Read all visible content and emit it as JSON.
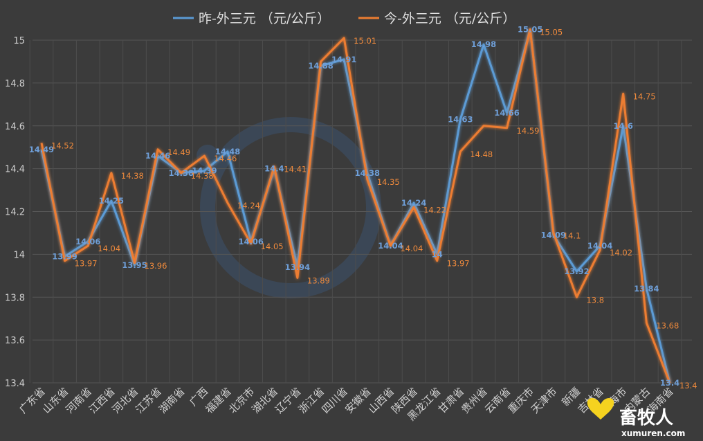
{
  "chart_data": {
    "type": "line",
    "legend_position": "top",
    "ylim": [
      13.4,
      15.0
    ],
    "yticks": [
      "13.4",
      "13.6",
      "13.8",
      "14",
      "14.2",
      "14.4",
      "14.6",
      "14.8",
      "15"
    ],
    "grid": true,
    "categories": [
      "广东省",
      "山东省",
      "河南省",
      "江西省",
      "河北省",
      "江苏省",
      "湖南省",
      "广西",
      "福建省",
      "北京市",
      "湖北省",
      "辽宁省",
      "浙江省",
      "四川省",
      "安徽省",
      "山西省",
      "陕西省",
      "黑龙江省",
      "甘肃省",
      "贵州省",
      "云南省",
      "重庆市",
      "天津市",
      "新疆",
      "吉林省",
      "上海市",
      "内蒙古",
      "海南省"
    ],
    "series": [
      {
        "name": "昨-外三元 （元/公斤）",
        "color": "#5b9bd5",
        "values": [
          14.49,
          13.99,
          14.06,
          14.25,
          13.95,
          14.46,
          14.38,
          14.39,
          14.48,
          14.06,
          14.4,
          13.94,
          14.88,
          14.91,
          14.38,
          14.04,
          14.24,
          14.0,
          14.63,
          14.98,
          14.66,
          15.05,
          14.09,
          13.92,
          14.04,
          14.6,
          13.84,
          13.4
        ],
        "labels": [
          "14.49",
          "13.99",
          "14.06",
          "14.25",
          "13.95",
          "14.46",
          "14.38",
          "14.39",
          "14.48",
          "14.06",
          "14.4",
          "13.94",
          "14.88",
          "14.91",
          "14.38",
          "14.04",
          "14.24",
          "14",
          "14.63",
          "14.98",
          "14.66",
          "15.05",
          "14.09",
          "13.92",
          "14.04",
          "14.6",
          "13.84",
          "13.4"
        ]
      },
      {
        "name": "今-外三元 （元/公斤）",
        "color": "#ed7d31",
        "values": [
          14.52,
          13.97,
          14.04,
          14.38,
          13.96,
          14.49,
          14.38,
          14.46,
          14.24,
          14.05,
          14.41,
          13.89,
          14.9,
          15.01,
          14.35,
          14.04,
          14.22,
          13.97,
          14.48,
          14.6,
          14.59,
          15.05,
          14.1,
          13.8,
          14.02,
          14.75,
          13.68,
          13.4
        ],
        "labels": [
          "14.52",
          "13.97",
          "14.04",
          "14.38",
          "13.96",
          "14.49",
          "14.38",
          "14.46",
          "14.24",
          "14.05",
          "14.41",
          "13.89",
          "",
          "15.01",
          "14.35",
          "14.04",
          "14.22",
          "13.97",
          "14.48",
          "",
          "14.59",
          "15.05",
          "14.1",
          "13.8",
          "14.02",
          "14.75",
          "13.68",
          "13.4"
        ]
      }
    ]
  },
  "watermark": {
    "brand": "畜牧人",
    "url": "xumuren.com"
  }
}
